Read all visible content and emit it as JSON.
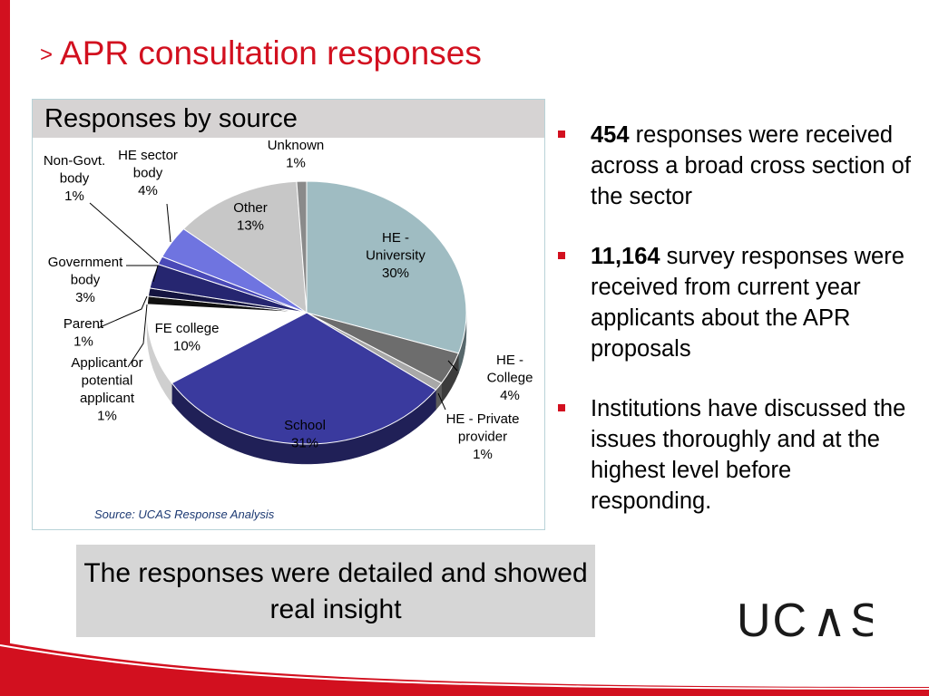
{
  "title": {
    "chevron": ">",
    "text": "APR consultation responses"
  },
  "chart_panel": {
    "heading": "Responses by source",
    "source": "Source: UCAS Response Analysis"
  },
  "chart_data": {
    "type": "pie",
    "title": "Responses by source",
    "unit": "%",
    "slices": [
      {
        "label": [
          "HE -",
          "University",
          "30%"
        ],
        "name": "HE - University",
        "value": 30,
        "color": "#9fbcc2"
      },
      {
        "label": [
          "HE -",
          "College",
          "4%"
        ],
        "name": "HE - College",
        "value": 4,
        "color": "#6d6d6d"
      },
      {
        "label": [
          "HE - Private",
          "provider",
          "1%"
        ],
        "name": "HE - Private provider",
        "value": 1,
        "color": "#a8a8a8"
      },
      {
        "label": [
          "School",
          "31%"
        ],
        "name": "School",
        "value": 31,
        "color": "#3a3a9e"
      },
      {
        "label": [
          "FE college",
          "10%"
        ],
        "name": "FE college",
        "value": 10,
        "color": "#ffffff"
      },
      {
        "label": [
          "Applicant or",
          "potential",
          "applicant",
          "1%"
        ],
        "name": "Applicant or potential applicant",
        "value": 1,
        "color": "#111111"
      },
      {
        "label": [
          "Parent",
          "1%"
        ],
        "name": "Parent",
        "value": 1,
        "color": "#141440"
      },
      {
        "label": [
          "Government",
          "body",
          "3%"
        ],
        "name": "Government body",
        "value": 3,
        "color": "#262670"
      },
      {
        "label": [
          "Non-Govt.",
          "body",
          "1%"
        ],
        "name": "Non-Govt. body",
        "value": 1,
        "color": "#4a4ab8"
      },
      {
        "label": [
          "HE sector",
          "body",
          "4%"
        ],
        "name": "HE sector body",
        "value": 4,
        "color": "#6f74e0"
      },
      {
        "label": [
          "Other",
          "13%"
        ],
        "name": "Other",
        "value": 13,
        "color": "#c7c7c7"
      },
      {
        "label": [
          "Unknown",
          "1%"
        ],
        "name": "Unknown",
        "value": 1,
        "color": "#8a8a8a"
      }
    ]
  },
  "bullets": [
    {
      "bold": "454",
      "text": " responses were received across a broad cross section of the sector"
    },
    {
      "bold": "11,164",
      "text": " survey responses were received from current year applicants about the APR proposals"
    },
    {
      "bold": "",
      "text": "Institutions have discussed the issues thoroughly and at the highest level before responding."
    }
  ],
  "callout": "The responses were detailed and showed real insight",
  "logo": {
    "text": "UCAS",
    "colors": {
      "text": "#1a1a1a",
      "accent": "#d2101f"
    }
  }
}
